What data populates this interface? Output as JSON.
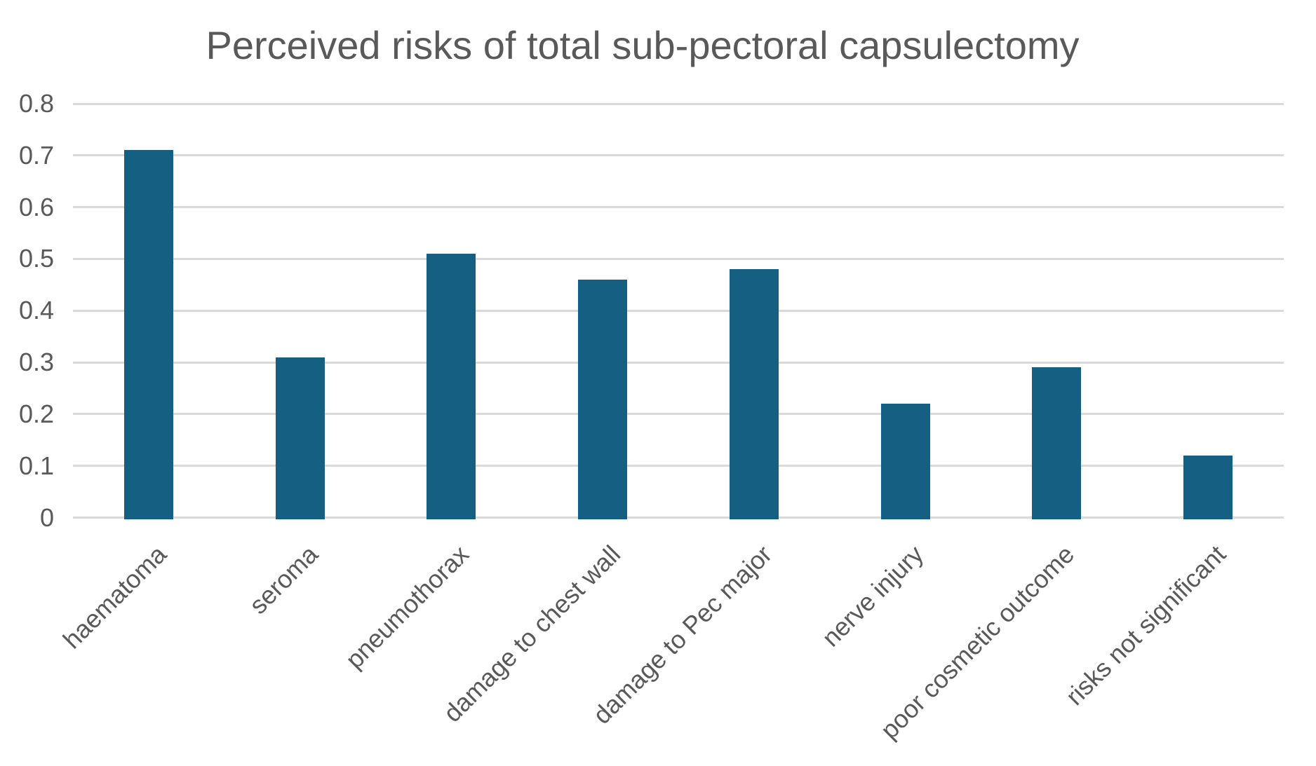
{
  "chart_data": {
    "type": "bar",
    "title": "Perceived risks of total sub-pectoral capsulectomy",
    "categories": [
      "haematoma",
      "seroma",
      "pneumothorax",
      "damage to chest wall",
      "damage to Pec major",
      "nerve injury",
      "poor cosmetic outcome",
      "risks not significant"
    ],
    "values": [
      0.71,
      0.31,
      0.51,
      0.46,
      0.48,
      0.22,
      0.29,
      0.12
    ],
    "xlabel": "",
    "ylabel": "",
    "ylim": [
      0,
      0.8
    ],
    "yticks": [
      0,
      0.1,
      0.2,
      0.3,
      0.4,
      0.5,
      0.6,
      0.7,
      0.8
    ],
    "grid": true,
    "legend": false,
    "x_label_rotation_deg": 45,
    "colors": {
      "bar": "#156082",
      "gridline": "#D9D9D9",
      "text": "#595959",
      "background": "#FFFFFF"
    }
  }
}
